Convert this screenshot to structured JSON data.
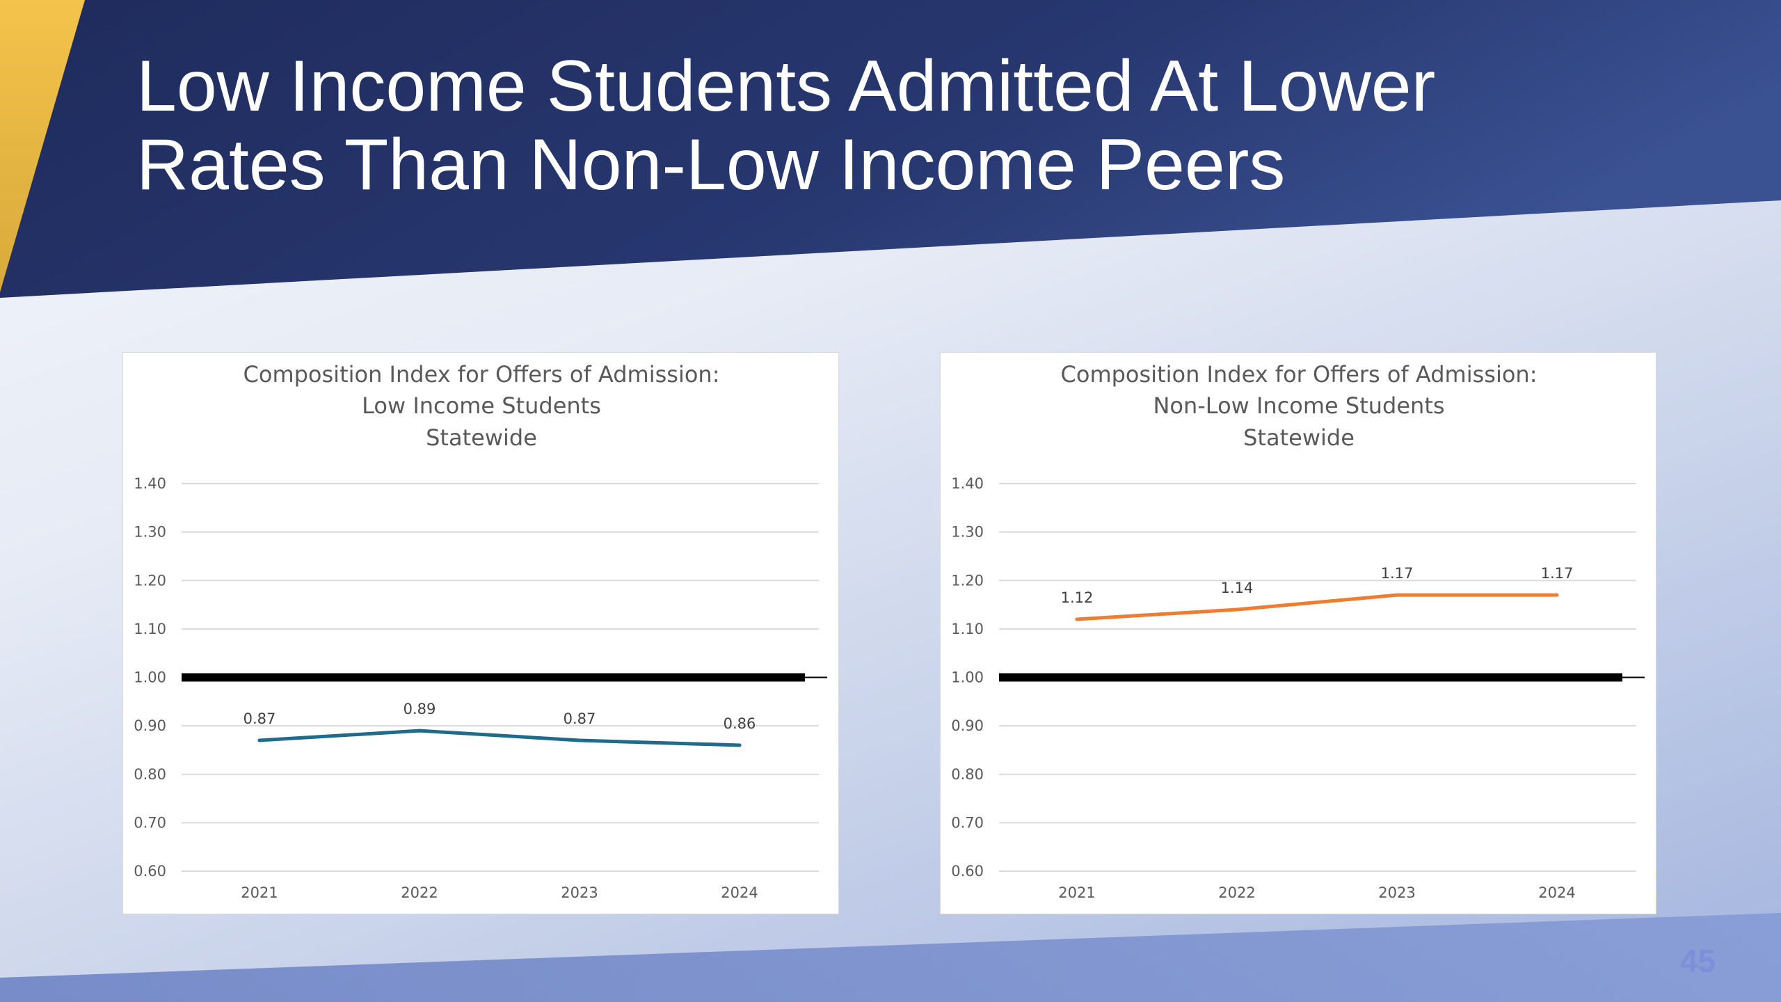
{
  "slide": {
    "title_line1": "Low Income Students Admitted At Lower",
    "title_line2": "Rates Than Non-Low Income Peers",
    "page_number": "45",
    "colors": {
      "header_navy": "#1f2b5c",
      "header_navy_light": "#34498a",
      "accent_gold": "#f0be4a",
      "footer_blue": "#6b82c4",
      "page_number": "#7d8fd8"
    }
  },
  "chart_data": [
    {
      "type": "line",
      "title_lines": [
        "Composition Index for Offers of Admission:",
        "Low Income Students",
        "Statewide"
      ],
      "categories": [
        "2021",
        "2022",
        "2023",
        "2024"
      ],
      "series": [
        {
          "values": [
            0.87,
            0.89,
            0.87,
            0.86
          ],
          "labels": [
            "0.87",
            "0.89",
            "0.87",
            "0.86"
          ],
          "color": "#1f6b8c"
        }
      ],
      "reference_line": {
        "y": 1.0,
        "color": "#000000"
      },
      "ylim": [
        0.6,
        1.4
      ],
      "yticks": [
        "0.60",
        "0.70",
        "0.80",
        "0.90",
        "1.00",
        "1.10",
        "1.20",
        "1.30",
        "1.40"
      ],
      "grid": true,
      "legend": "none"
    },
    {
      "type": "line",
      "title_lines": [
        "Composition Index for Offers of Admission:",
        "Non-Low Income Students",
        "Statewide"
      ],
      "categories": [
        "2021",
        "2022",
        "2023",
        "2024"
      ],
      "series": [
        {
          "values": [
            1.12,
            1.14,
            1.17,
            1.17
          ],
          "labels": [
            "1.12",
            "1.14",
            "1.17",
            "1.17"
          ],
          "color": "#ed7d31"
        }
      ],
      "reference_line": {
        "y": 1.0,
        "color": "#000000"
      },
      "ylim": [
        0.6,
        1.4
      ],
      "yticks": [
        "0.60",
        "0.70",
        "0.80",
        "0.90",
        "1.00",
        "1.10",
        "1.20",
        "1.30",
        "1.40"
      ],
      "grid": true,
      "legend": "none"
    }
  ]
}
